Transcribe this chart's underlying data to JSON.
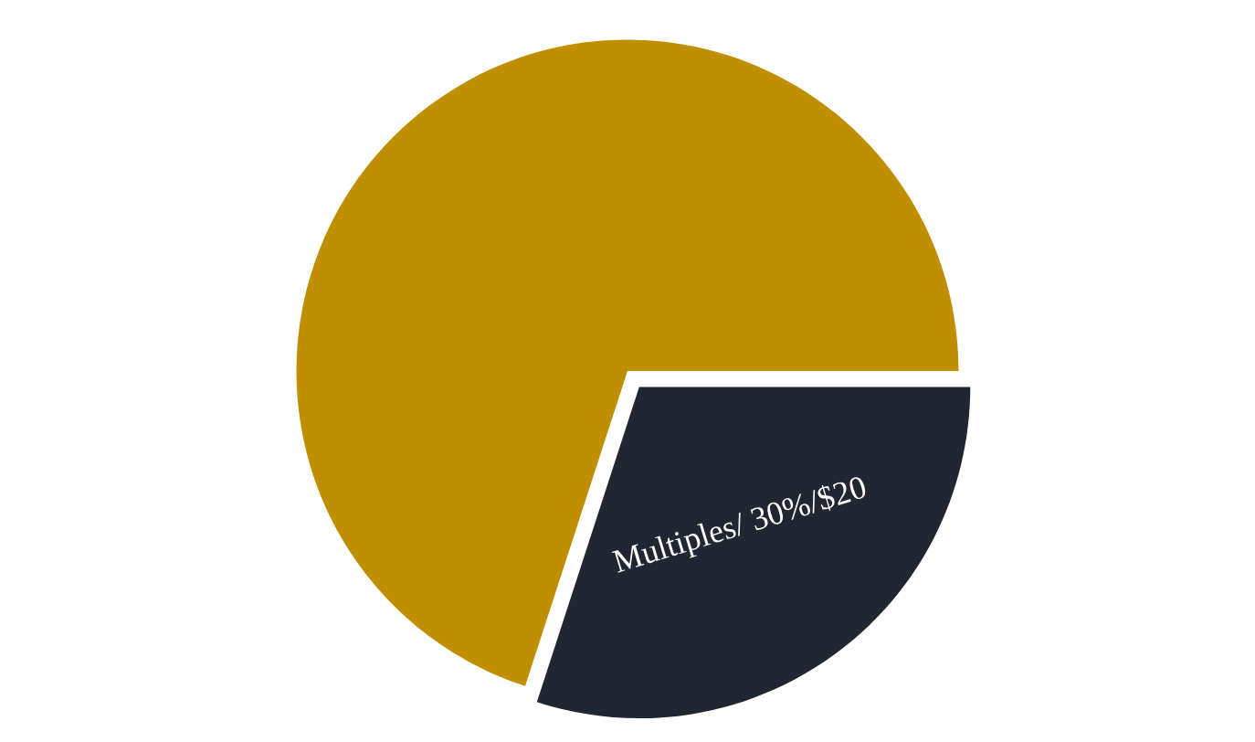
{
  "chart_data": {
    "type": "pie",
    "categories": [
      null,
      null
    ],
    "values": [
      70,
      30
    ],
    "colors": [
      "#bf8f00",
      "#202733"
    ],
    "value_labels": [
      null,
      "Multiples/ 30%/$20"
    ]
  }
}
